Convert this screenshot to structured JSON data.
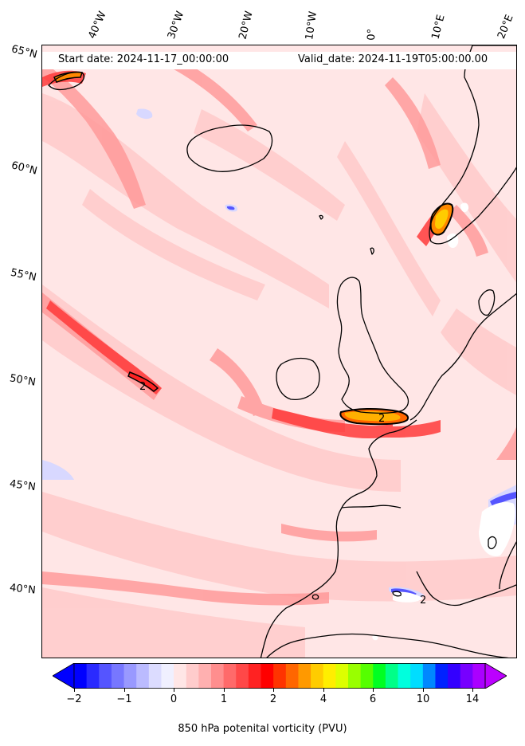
{
  "header": {
    "start_date": "Start date: 2024-11-17_00:00:00",
    "valid_date": "Valid_date: 2024-11-19T05:00:00.00"
  },
  "longitude_labels": [
    "40°W",
    "30°W",
    "20°W",
    "10°W",
    "0°",
    "10°E",
    "20°E"
  ],
  "latitude_labels": [
    "65°N",
    "60°N",
    "55°N",
    "50°N",
    "45°N",
    "40°N"
  ],
  "contour_labels": [
    "2",
    "2",
    "2"
  ],
  "colorbar": {
    "label": "850 hPa potenital vorticity (PVU)",
    "tick_labels": [
      "−2",
      "−1",
      "0",
      "1",
      "2",
      "4",
      "6",
      "10",
      "14"
    ],
    "colors": [
      "#0000ff",
      "#2a2aff",
      "#5555ff",
      "#7777ff",
      "#9999ff",
      "#bbbbff",
      "#dcdcff",
      "#f0f0ff",
      "#ffe6e6",
      "#ffcccc",
      "#ffb0b0",
      "#ff8e8e",
      "#ff6a6a",
      "#ff4848",
      "#ff2222",
      "#ff0000",
      "#ff3300",
      "#ff6600",
      "#ff9900",
      "#ffcc00",
      "#ffee00",
      "#ddff00",
      "#99ff00",
      "#55ff00",
      "#00ff22",
      "#00ff88",
      "#00ffdd",
      "#00ddff",
      "#0088ff",
      "#0022ff",
      "#3300ff",
      "#7700ff",
      "#aa00ff"
    ],
    "under_color": "#0000ff",
    "over_color": "#bb00ff"
  }
}
